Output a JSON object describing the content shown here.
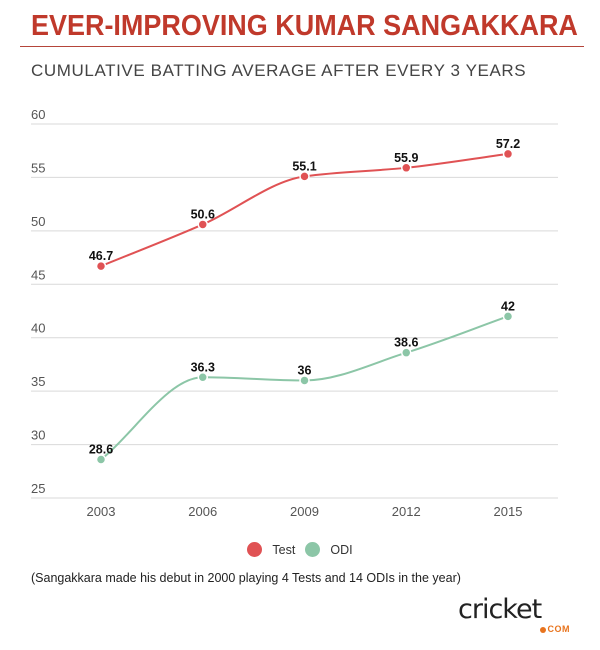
{
  "header": {
    "title": "EVER-IMPROVING KUMAR SANGAKKARA",
    "subtitle": "CUMULATIVE BATTING AVERAGE AFTER EVERY 3 YEARS"
  },
  "footer": {
    "note": "(Sangakkara made his debut in 2000 playing 4 Tests and 14 ODIs in the year)",
    "logo_text": "cricket",
    "logo_suffix": "COM"
  },
  "chart_data": {
    "type": "line",
    "title": "EVER-IMPROVING KUMAR SANGAKKARA",
    "subtitle": "CUMULATIVE BATTING AVERAGE AFTER EVERY 3 YEARS",
    "xlabel": "",
    "ylabel": "",
    "categories": [
      "2003",
      "2006",
      "2009",
      "2012",
      "2015"
    ],
    "ylim": [
      25,
      60
    ],
    "yticks": [
      25,
      30,
      35,
      40,
      45,
      50,
      55,
      60
    ],
    "grid": true,
    "legend_position": "bottom-center",
    "series": [
      {
        "name": "Test",
        "color": "#e05254",
        "values": [
          46.7,
          50.6,
          55.1,
          55.9,
          57.2
        ],
        "labels": [
          "46.7",
          "50.6",
          "55.1",
          "55.9",
          "57.2"
        ]
      },
      {
        "name": "ODI",
        "color": "#8cc6a7",
        "values": [
          28.6,
          36.3,
          36,
          38.6,
          42
        ],
        "labels": [
          "28.6",
          "36.3",
          "36",
          "38.6",
          "42"
        ]
      }
    ]
  }
}
